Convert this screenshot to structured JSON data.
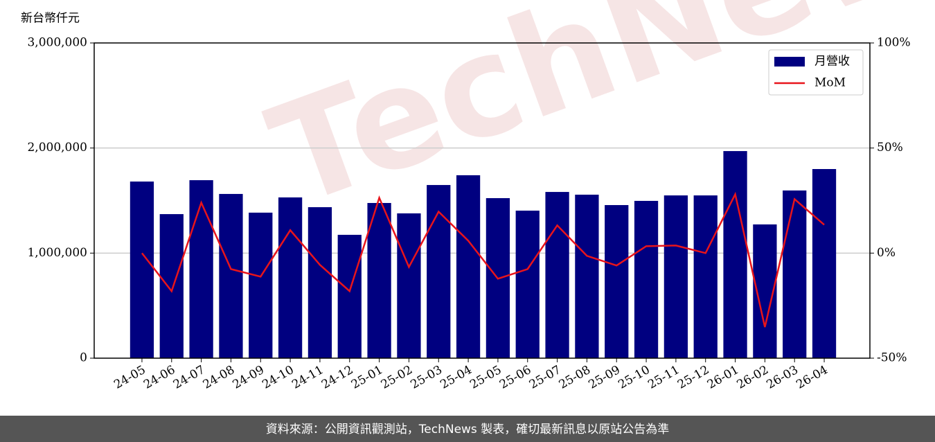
{
  "chart_data": {
    "type": "bar-line",
    "y_label": "新台幣仟元",
    "watermark": "TechNews",
    "footer": "資料來源：公開資訊觀測站，TechNews 製表，確切最新訊息以原站公告為準",
    "categories": [
      "24-05",
      "24-06",
      "24-07",
      "24-08",
      "24-09",
      "24-10",
      "24-11",
      "24-12",
      "25-01",
      "25-02",
      "25-03",
      "25-04",
      "25-05",
      "25-06",
      "25-07",
      "25-08",
      "25-09",
      "25-10",
      "25-11",
      "25-12",
      "26-01",
      "26-02",
      "26-03",
      "26-04"
    ],
    "series": [
      {
        "name": "月營收",
        "type": "bar",
        "color": "#000080",
        "values": [
          1681000,
          1371000,
          1694000,
          1563000,
          1385000,
          1530000,
          1437000,
          1174000,
          1477000,
          1378000,
          1648000,
          1741000,
          1523000,
          1404000,
          1582000,
          1556000,
          1457000,
          1497000,
          1549000,
          1549000,
          1971000,
          1273000,
          1596000,
          1800000
        ]
      },
      {
        "name": "MoM",
        "type": "line",
        "axis": "y2",
        "color": "#e8141b",
        "values": [
          0,
          -18.1,
          24.0,
          -7.6,
          -11.2,
          10.9,
          -5.6,
          -18.1,
          26.3,
          -6.6,
          19.7,
          5.9,
          -12.2,
          -7.6,
          13.2,
          -1.3,
          -5.9,
          3.3,
          3.6,
          0,
          28.0,
          -35.2,
          25.7,
          13.5
        ]
      }
    ],
    "ylim": [
      0,
      3000000
    ],
    "yticks": [
      0,
      {
        "value": 1000000,
        "label": "1,000,000"
      },
      {
        "value": 2000000,
        "label": "2,000,000"
      },
      {
        "value": 3000000,
        "label": "3,000,000"
      }
    ],
    "y2lim": [
      -50,
      100
    ],
    "y2ticks": [
      {
        "value": -50,
        "label": "-50%"
      },
      {
        "value": 0,
        "label": "0%"
      },
      {
        "value": 50,
        "label": "50%"
      },
      {
        "value": 100,
        "label": "100%"
      }
    ],
    "grid": true,
    "legend": "upper right"
  }
}
